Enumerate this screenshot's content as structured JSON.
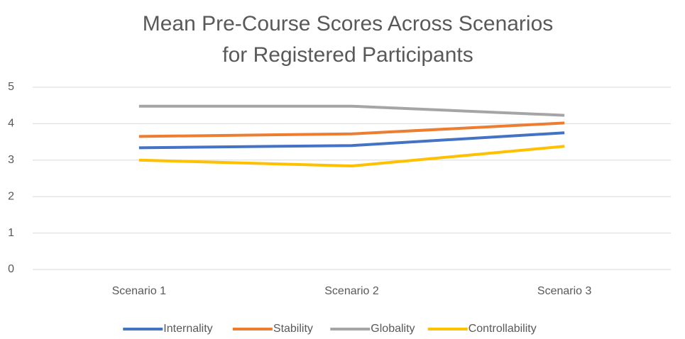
{
  "chart_data": {
    "type": "line",
    "title": "Mean Pre-Course Scores Across Scenarios for Registered Participants",
    "categories": [
      "Scenario 1",
      "Scenario 2",
      "Scenario 3"
    ],
    "series": [
      {
        "name": "Internality",
        "color": "#4472c4",
        "values": [
          3.34,
          3.4,
          3.75
        ]
      },
      {
        "name": "Stability",
        "color": "#ed7d31",
        "values": [
          3.65,
          3.72,
          4.02
        ]
      },
      {
        "name": "Globality",
        "color": "#a5a5a5",
        "values": [
          4.48,
          4.48,
          4.23
        ]
      },
      {
        "name": "Controllability",
        "color": "#ffc000",
        "values": [
          3.0,
          2.84,
          3.38
        ]
      }
    ],
    "ylim": [
      0,
      5
    ],
    "yticks": [
      0,
      1,
      2,
      3,
      4,
      5
    ],
    "grid": true,
    "legend": "bottom"
  }
}
